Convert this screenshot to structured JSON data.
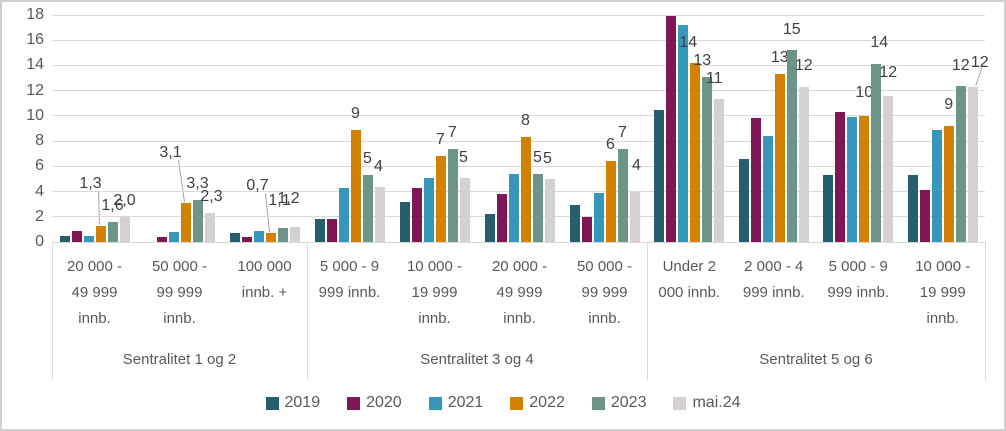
{
  "chart_data": {
    "type": "bar",
    "title": "",
    "xlabel": "",
    "ylabel": "",
    "ylim": [
      0,
      18
    ],
    "yticks": [
      0,
      2,
      4,
      6,
      8,
      10,
      12,
      14,
      16,
      18
    ],
    "grid": true,
    "legend_position": "bottom",
    "decimal_separator": ",",
    "value_labels_on_series": [
      "2022",
      "2023",
      "mai.24"
    ],
    "series": [
      {
        "name": "2019",
        "color": "#255E6C"
      },
      {
        "name": "2020",
        "color": "#7E1755"
      },
      {
        "name": "2021",
        "color": "#3697BB"
      },
      {
        "name": "2022",
        "color": "#D28200"
      },
      {
        "name": "2023",
        "color": "#6C9489"
      },
      {
        "name": "mai.24",
        "color": "#D4D1D0"
      }
    ],
    "sections": [
      {
        "label": "Sentralitet 1 og 2",
        "categories": [
          {
            "label": "20 000 - 49 999 innb.",
            "lines": [
              "20 000 -",
              "49 999",
              "innb."
            ],
            "values": [
              0.5,
              0.9,
              0.5,
              1.3,
              1.6,
              2.0
            ],
            "bar_labels": [
              null,
              null,
              null,
              "1,3",
              "1,6",
              "2,0"
            ]
          },
          {
            "label": "50 000 - 99 999 innb.",
            "lines": [
              "50 000 -",
              "99 999",
              "innb."
            ],
            "values": [
              0,
              0.4,
              0.8,
              3.1,
              3.3,
              2.3
            ],
            "bar_labels": [
              null,
              null,
              null,
              "3,1",
              "3,3",
              "2,3"
            ]
          },
          {
            "label": "100 000 innb. +",
            "lines": [
              "100 000",
              "innb. +"
            ],
            "values": [
              0.7,
              0.4,
              0.9,
              0.7,
              1.1,
              1.2
            ],
            "bar_labels": [
              null,
              null,
              null,
              "0,7",
              "1,1",
              "1,2"
            ]
          }
        ]
      },
      {
        "label": "Sentralitet 3 og 4",
        "categories": [
          {
            "label": "5 000 - 9 999 innb.",
            "lines": [
              "5 000 - 9",
              "999 innb."
            ],
            "values": [
              1.8,
              1.8,
              4.3,
              8.9,
              5.3,
              4.4
            ],
            "bar_labels": [
              null,
              null,
              null,
              "9",
              "5",
              "4"
            ]
          },
          {
            "label": "10 000 - 19 999 innb.",
            "lines": [
              "10 000 -",
              "19 999",
              "innb."
            ],
            "values": [
              3.2,
              4.3,
              5.1,
              6.8,
              7.4,
              5.1
            ],
            "bar_labels": [
              null,
              null,
              null,
              "7",
              "7",
              "5"
            ]
          },
          {
            "label": "20 000 - 49 999 innb.",
            "lines": [
              "20 000 -",
              "49 999",
              "innb."
            ],
            "values": [
              2.2,
              3.8,
              5.4,
              8.3,
              5.4,
              5.0
            ],
            "bar_labels": [
              null,
              null,
              null,
              "8",
              "5",
              "5"
            ]
          },
          {
            "label": "50 000 - 99 999 innb.",
            "lines": [
              "50 000 -",
              "99 999",
              "innb."
            ],
            "values": [
              2.9,
              2.0,
              3.9,
              6.4,
              7.4,
              4.0
            ],
            "bar_labels": [
              null,
              null,
              null,
              "6",
              "7",
              "4"
            ]
          }
        ]
      },
      {
        "label": "Sentralitet 5 og 6",
        "categories": [
          {
            "label": "Under 2 000 innb.",
            "lines": [
              "Under 2",
              "000 innb."
            ],
            "values": [
              10.5,
              17.9,
              17.2,
              14.2,
              13.1,
              11.3
            ],
            "bar_labels": [
              null,
              null,
              null,
              "14",
              "13",
              "11"
            ]
          },
          {
            "label": "2 000 - 4 999 innb.",
            "lines": [
              "2 000 - 4",
              "999 innb."
            ],
            "values": [
              6.6,
              9.8,
              8.4,
              13.3,
              15.2,
              12.3
            ],
            "bar_labels": [
              null,
              null,
              null,
              "13",
              "15",
              "12"
            ]
          },
          {
            "label": "5 000 - 9 999 innb.",
            "lines": [
              "5 000 - 9",
              "999 innb."
            ],
            "values": [
              5.3,
              10.3,
              9.9,
              10.0,
              14.1,
              11.6
            ],
            "bar_labels": [
              null,
              null,
              null,
              "10",
              "14",
              "12"
            ]
          },
          {
            "label": "10 000 - 19 999 innb.",
            "lines": [
              "10 000 -",
              "19 999",
              "innb."
            ],
            "values": [
              5.3,
              4.1,
              8.9,
              9.2,
              12.4,
              12.3
            ],
            "bar_labels": [
              null,
              null,
              null,
              "9",
              "12",
              "12"
            ]
          }
        ]
      }
    ],
    "label_layout": {
      "0-3": {
        "dx": -10,
        "dy": -26,
        "leader": true
      },
      "1-3": {
        "dx": -15,
        "dy": -34,
        "leader": true
      },
      "1-5": {
        "dx": 2,
        "dy": 0
      },
      "2-3": {
        "dx": -13,
        "dy": -31,
        "leader": true
      },
      "2-4": {
        "dx": -3,
        "dy": -11
      },
      "2-5": {
        "dx": -6,
        "dy": -12
      },
      "3-5": {
        "dx": -1,
        "dy": -4
      },
      "4-5": {
        "dx": -1,
        "dy": -4
      },
      "5-5": {
        "dx": -2,
        "dy": -4
      },
      "6-5": {
        "dx": 2,
        "dy": -10
      },
      "7-3": {
        "dx": -7,
        "dy": -4
      },
      "7-4": {
        "dx": -5,
        "dy": 0
      },
      "7-5": {
        "dx": -5,
        "dy": -4
      },
      "8-4": {
        "dx": 0,
        "dy": -4
      },
      "8-5": {
        "dx": 0,
        "dy": -5
      },
      "9-3": {
        "dx": 0,
        "dy": -7
      },
      "9-4": {
        "dx": 3,
        "dy": -5
      },
      "9-5": {
        "dx": 0,
        "dy": -7
      },
      "10-3": {
        "dx": 0,
        "dy": -5
      },
      "10-4": {
        "dx": 0,
        "dy": -4
      },
      "10-5": {
        "dx": 7,
        "dy": -8,
        "leader": true
      }
    },
    "colors": {
      "grid": "#D9D9D9",
      "axis_text": "#595959",
      "data_label": "#404040",
      "leader_line": "#A6A6A6",
      "frame": "#D0CECE",
      "background": "#FFFFFF"
    }
  }
}
